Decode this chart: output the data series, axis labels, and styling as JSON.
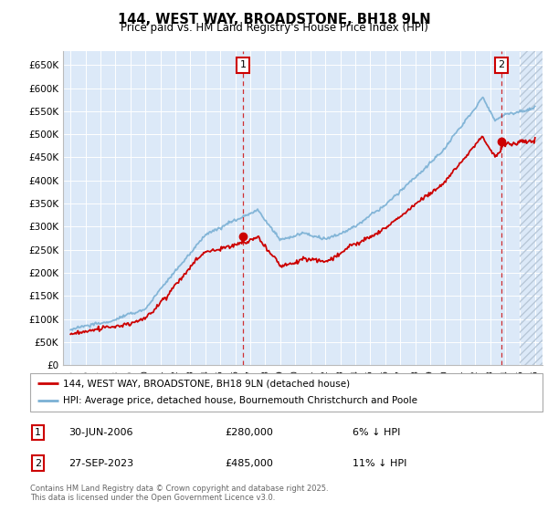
{
  "title": "144, WEST WAY, BROADSTONE, BH18 9LN",
  "subtitle": "Price paid vs. HM Land Registry's House Price Index (HPI)",
  "red_label": "144, WEST WAY, BROADSTONE, BH18 9LN (detached house)",
  "blue_label": "HPI: Average price, detached house, Bournemouth Christchurch and Poole",
  "ann1_date": "30-JUN-2006",
  "ann1_price": "£280,000",
  "ann1_pct": "6% ↓ HPI",
  "ann1_year": 2006.5,
  "ann1_value": 280000,
  "ann2_date": "27-SEP-2023",
  "ann2_price": "£485,000",
  "ann2_pct": "11% ↓ HPI",
  "ann2_year": 2023.75,
  "ann2_value": 485000,
  "footnote": "Contains HM Land Registry data © Crown copyright and database right 2025.\nThis data is licensed under the Open Government Licence v3.0.",
  "ylim": [
    0,
    680000
  ],
  "yticks": [
    0,
    50000,
    100000,
    150000,
    200000,
    250000,
    300000,
    350000,
    400000,
    450000,
    500000,
    550000,
    600000,
    650000
  ],
  "ytick_labels": [
    "£0",
    "£50K",
    "£100K",
    "£150K",
    "£200K",
    "£250K",
    "£300K",
    "£350K",
    "£400K",
    "£450K",
    "£500K",
    "£550K",
    "£600K",
    "£650K"
  ],
  "xlim": [
    1994.5,
    2026.5
  ],
  "xtick_start": 1995,
  "xtick_end": 2026,
  "background_color": "#dce9f8",
  "grid_color": "#ffffff",
  "red_color": "#cc0000",
  "blue_color": "#7ab0d4",
  "hatch_start": 2025.0,
  "hatch_color": "#b8c8d8"
}
